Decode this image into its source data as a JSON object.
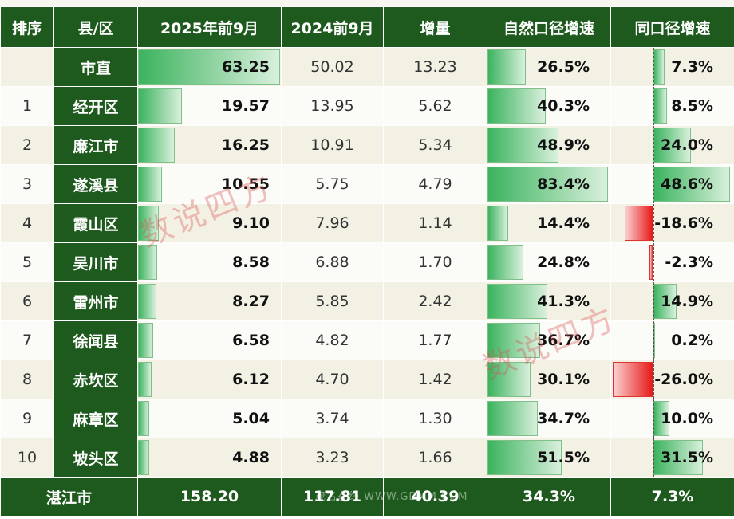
{
  "header": {
    "rank": "排序",
    "county": "县/区",
    "y2025": "2025年前9月",
    "y2024": "2024前9月",
    "increase": "增量",
    "natural_growth": "自然口径增速",
    "comparable_growth": "同口径增速"
  },
  "rows": [
    {
      "rank": "",
      "county": "市直",
      "y2025": "63.25",
      "y2024": "50.02",
      "increase": "13.23",
      "natural_growth": "26.5%",
      "comparable_growth": "7.3%"
    },
    {
      "rank": "1",
      "county": "经开区",
      "y2025": "19.57",
      "y2024": "13.95",
      "increase": "5.62",
      "natural_growth": "40.3%",
      "comparable_growth": "8.5%"
    },
    {
      "rank": "2",
      "county": "廉江市",
      "y2025": "16.25",
      "y2024": "10.91",
      "increase": "5.34",
      "natural_growth": "48.9%",
      "comparable_growth": "24.0%"
    },
    {
      "rank": "3",
      "county": "遂溪县",
      "y2025": "10.55",
      "y2024": "5.75",
      "increase": "4.79",
      "natural_growth": "83.4%",
      "comparable_growth": "48.6%"
    },
    {
      "rank": "4",
      "county": "霞山区",
      "y2025": "9.10",
      "y2024": "7.96",
      "increase": "1.14",
      "natural_growth": "14.4%",
      "comparable_growth": "-18.6%"
    },
    {
      "rank": "5",
      "county": "吴川市",
      "y2025": "8.58",
      "y2024": "6.88",
      "increase": "1.70",
      "natural_growth": "24.8%",
      "comparable_growth": "-2.3%"
    },
    {
      "rank": "6",
      "county": "雷州市",
      "y2025": "8.27",
      "y2024": "5.85",
      "increase": "2.42",
      "natural_growth": "41.3%",
      "comparable_growth": "14.9%"
    },
    {
      "rank": "7",
      "county": "徐闻县",
      "y2025": "6.58",
      "y2024": "4.82",
      "increase": "1.77",
      "natural_growth": "36.7%",
      "comparable_growth": "0.2%"
    },
    {
      "rank": "8",
      "county": "赤坎区",
      "y2025": "6.12",
      "y2024": "4.70",
      "increase": "1.42",
      "natural_growth": "30.1%",
      "comparable_growth": "-26.0%"
    },
    {
      "rank": "9",
      "county": "麻章区",
      "y2025": "5.04",
      "y2024": "3.74",
      "increase": "1.30",
      "natural_growth": "34.7%",
      "comparable_growth": "10.0%"
    },
    {
      "rank": "10",
      "county": "坡头区",
      "y2025": "4.88",
      "y2024": "3.23",
      "increase": "1.66",
      "natural_growth": "51.5%",
      "comparable_growth": "31.5%"
    }
  ],
  "total": {
    "county": "湛江市",
    "y2025": "158.20",
    "y2024": "117.81",
    "increase": "40.39",
    "natural_growth": "34.3%",
    "comparable_growth": "7.3%"
  },
  "watermark": "数说四方",
  "watermark_footer": "茂名在线 WWW.GDMM.COM",
  "colors": {
    "header_green": "#1e5a1e",
    "bar_green": "#3bb35e",
    "bar_red": "#e81818"
  },
  "chart_data": {
    "type": "table",
    "columns": [
      "排序",
      "县/区",
      "2025年前9月",
      "2024前9月",
      "增量",
      "自然口径增速",
      "同口径增速"
    ],
    "categories": [
      "市直",
      "经开区",
      "廉江市",
      "遂溪县",
      "霞山区",
      "吴川市",
      "雷州市",
      "徐闻县",
      "赤坎区",
      "麻章区",
      "坡头区"
    ],
    "series": [
      {
        "name": "2025年前9月",
        "values": [
          63.25,
          19.57,
          16.25,
          10.55,
          9.1,
          8.58,
          8.27,
          6.58,
          6.12,
          5.04,
          4.88
        ]
      },
      {
        "name": "2024前9月",
        "values": [
          50.02,
          13.95,
          10.91,
          5.75,
          7.96,
          6.88,
          5.85,
          4.82,
          4.7,
          3.74,
          3.23
        ]
      },
      {
        "name": "增量",
        "values": [
          13.23,
          5.62,
          5.34,
          4.79,
          1.14,
          1.7,
          2.42,
          1.77,
          1.42,
          1.3,
          1.66
        ]
      },
      {
        "name": "自然口径增速",
        "values": [
          26.5,
          40.3,
          48.9,
          83.4,
          14.4,
          24.8,
          41.3,
          36.7,
          30.1,
          34.7,
          51.5
        ]
      },
      {
        "name": "同口径增速",
        "values": [
          7.3,
          8.5,
          24.0,
          48.6,
          -18.6,
          -2.3,
          14.9,
          0.2,
          -26.0,
          10.0,
          31.5
        ]
      }
    ],
    "total": {
      "2025年前9月": 158.2,
      "2024前9月": 117.81,
      "增量": 40.39,
      "自然口径增速": 34.3,
      "同口径增速": 7.3
    }
  }
}
